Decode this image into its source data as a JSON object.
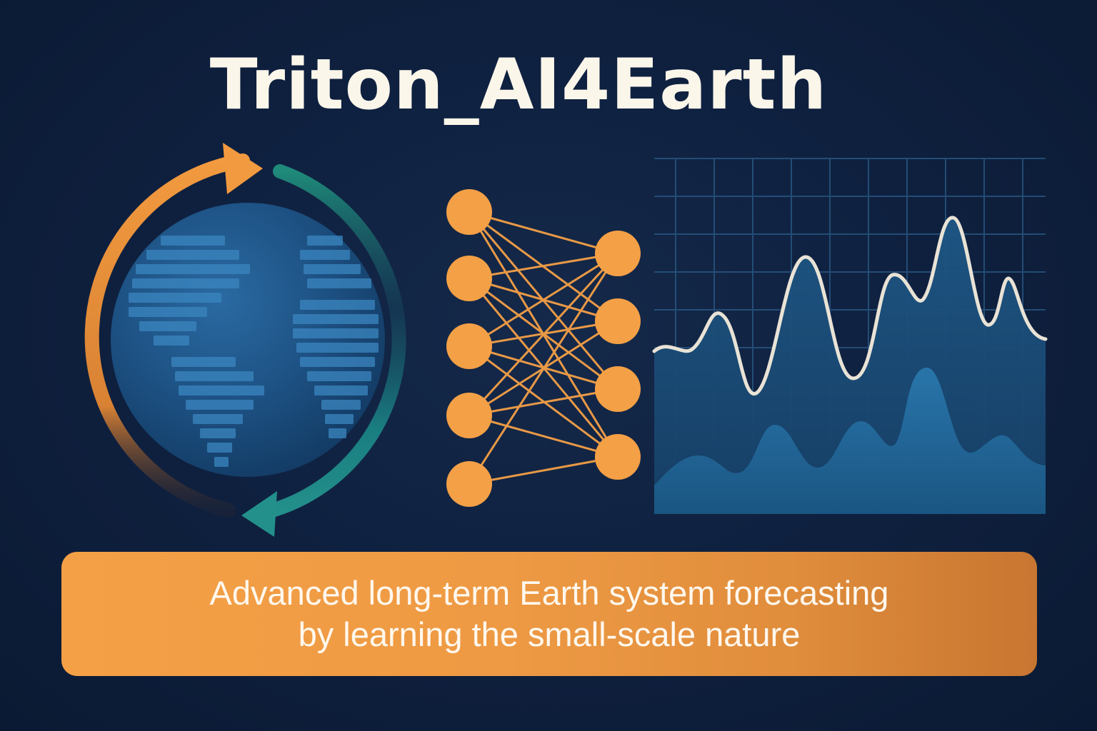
{
  "title": "Triton_AI4Earth",
  "tagline": {
    "line1": "Advanced long-term Earth system forecasting",
    "line2": "by learning the small-scale nature"
  },
  "colors": {
    "background": "#0f2140",
    "title": "#fbf6ea",
    "accent_orange": "#f4a046",
    "accent_teal": "#1f8a87",
    "globe_blue": "#1e5a8c",
    "chart_line": "#e9e3d6",
    "chart_fill": "#1d5b88"
  },
  "icons": {
    "globe": "globe-icon",
    "cycle_arrows": "cycle-arrows-icon",
    "network": "neural-network-icon",
    "chart": "wave-chart-icon"
  }
}
